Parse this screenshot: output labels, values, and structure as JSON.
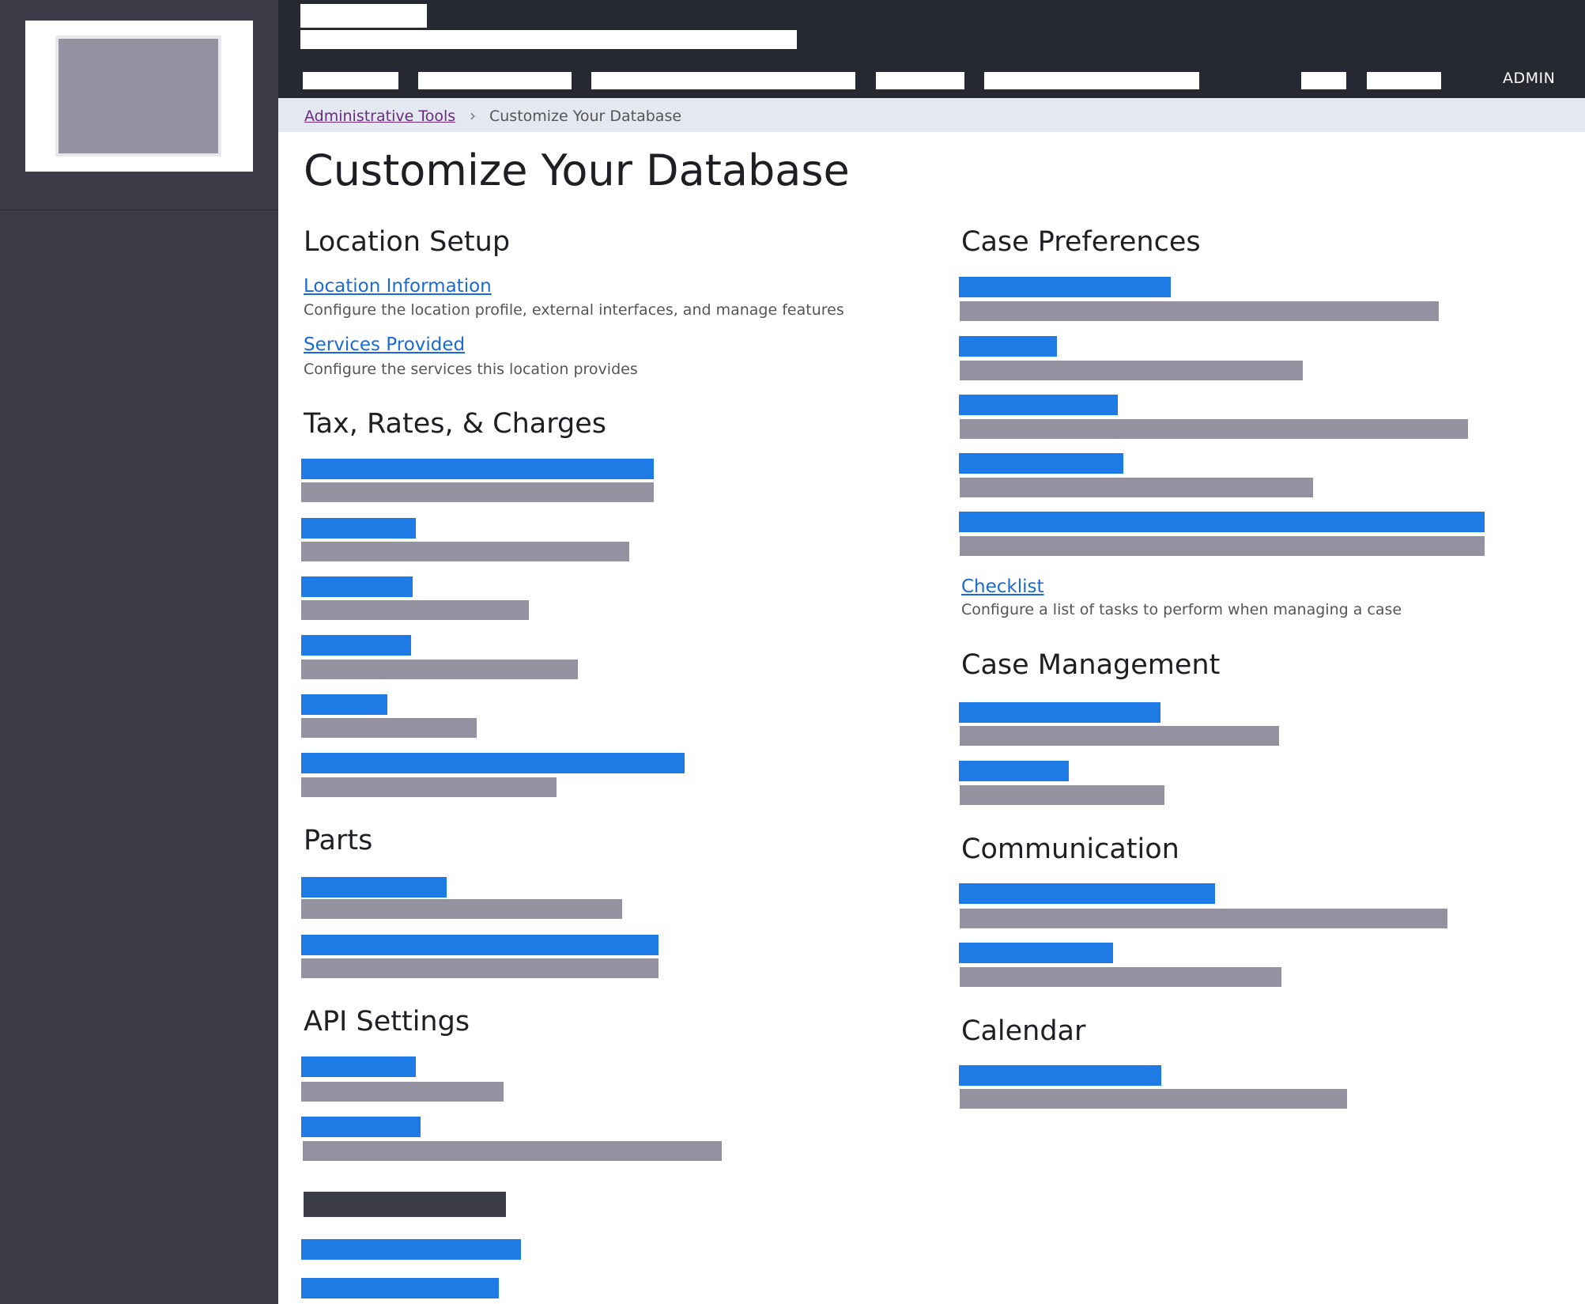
{
  "nav": {
    "admin_label": "ADMIN"
  },
  "breadcrumb": {
    "parent": "Administrative Tools",
    "separator": "›",
    "current": "Customize Your Database"
  },
  "page": {
    "title": "Customize Your Database"
  },
  "sections": {
    "location_setup": {
      "title": "Location Setup",
      "items": [
        {
          "label": "Location Information",
          "description": "Configure the location profile, external interfaces, and manage features"
        },
        {
          "label": "Services Provided",
          "description": "Configure the services this location provides"
        }
      ]
    },
    "tax_rates_charges": {
      "title": "Tax, Rates, & Charges"
    },
    "parts": {
      "title": "Parts"
    },
    "api_settings": {
      "title": "API Settings"
    },
    "case_preferences": {
      "title": "Case Preferences",
      "checklist": {
        "label": "Checklist",
        "description": "Configure a list of tasks to perform when managing a case"
      }
    },
    "case_management": {
      "title": "Case Management"
    },
    "communication": {
      "title": "Communication"
    },
    "calendar": {
      "title": "Calendar"
    }
  }
}
